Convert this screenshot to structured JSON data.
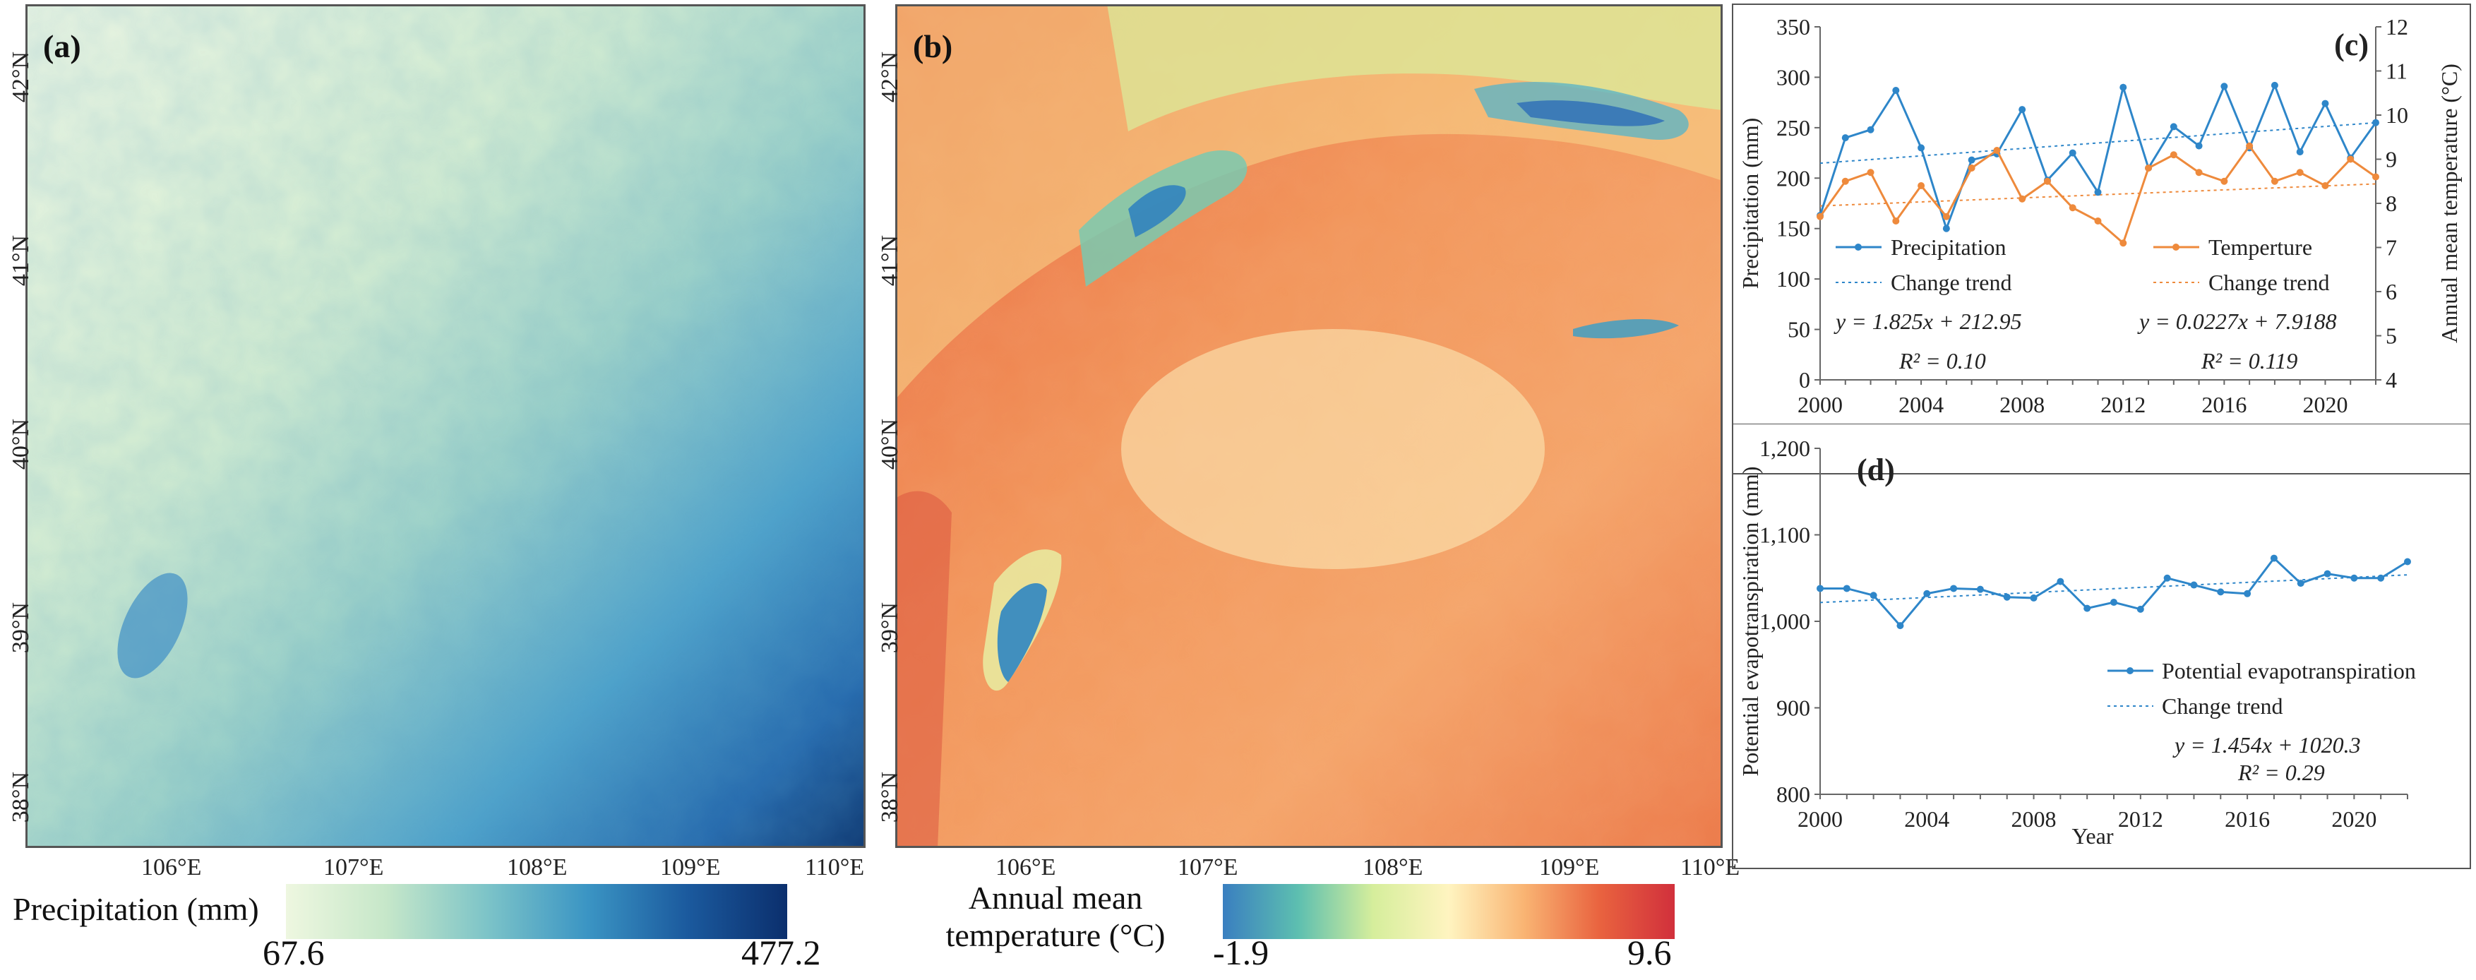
{
  "panels": {
    "a": {
      "letter": "(a)"
    },
    "b": {
      "letter": "(b)"
    },
    "c": {
      "letter": "(c)"
    },
    "d": {
      "letter": "(d)"
    }
  },
  "map_axes": {
    "lon_labels": [
      "106°E",
      "107°E",
      "108°E",
      "109°E",
      "110°E"
    ],
    "lat_labels": [
      "42°N",
      "41°N",
      "40°N",
      "39°N",
      "38°N"
    ]
  },
  "legend_a": {
    "title": "Precipitation (mm)",
    "min": "67.6",
    "max": "477.2",
    "colors": [
      "#eef7e0",
      "#c6e7c9",
      "#7dc4c8",
      "#3b95c4",
      "#1b5a9e",
      "#0b2f6d"
    ]
  },
  "legend_b": {
    "title_line1": "Annual mean",
    "title_line2": "temperature (°C)",
    "min": "-1.9",
    "max": "9.6",
    "colors": [
      "#3a7fc0",
      "#5dbfb0",
      "#d6ee9c",
      "#fff4c0",
      "#f9b473",
      "#e9633f",
      "#d1303c"
    ]
  },
  "colors": {
    "precip": "#2e86c9",
    "temp": "#ee8a3c"
  },
  "chart_data": [
    {
      "panel": "(c)",
      "type": "line",
      "x": [
        2000,
        2001,
        2002,
        2003,
        2004,
        2005,
        2006,
        2007,
        2008,
        2009,
        2010,
        2011,
        2012,
        2013,
        2014,
        2015,
        2016,
        2017,
        2018,
        2019,
        2020,
        2021,
        2022
      ],
      "series": [
        {
          "name": "Precipitation",
          "axis": "left",
          "values": [
            163,
            240,
            248,
            287,
            230,
            150,
            218,
            224,
            268,
            198,
            225,
            186,
            290,
            210,
            251,
            232,
            291,
            230,
            292,
            226,
            274,
            220,
            255
          ]
        },
        {
          "name": "Temperture",
          "axis": "right",
          "values": [
            7.7,
            8.5,
            8.7,
            7.6,
            8.4,
            7.7,
            8.8,
            9.2,
            8.1,
            8.5,
            7.9,
            7.6,
            7.1,
            8.8,
            9.1,
            8.7,
            8.5,
            9.3,
            8.5,
            8.7,
            8.4,
            9.0,
            8.6
          ]
        }
      ],
      "trends": [
        {
          "name": "Change trend",
          "of": "Precipitation",
          "slope": 1.825,
          "intercept": 212.95,
          "equation": "y = 1.825x + 212.95",
          "r2": "R² = 0.10"
        },
        {
          "name": "Change trend",
          "of": "Temperture",
          "slope": 0.0227,
          "intercept": 7.9188,
          "equation": "y = 0.0227x + 7.9188",
          "r2": "R² = 0.119"
        }
      ],
      "ylabel": "Precipitation (mm)",
      "y2label": "Annual mean temperature (°C)",
      "ylim": [
        0,
        350
      ],
      "y2lim": [
        4,
        12
      ],
      "xlim": [
        2000,
        2022
      ],
      "xticks": [
        "2000",
        "2004",
        "2008",
        "2012",
        "2016",
        "2020"
      ],
      "yticks": [
        "0",
        "50",
        "100",
        "150",
        "200",
        "250",
        "300",
        "350"
      ],
      "y2ticks": [
        "4",
        "5",
        "6",
        "7",
        "8",
        "9",
        "10",
        "11",
        "12"
      ],
      "legend": [
        "Precipitation",
        "Temperture",
        "Change trend",
        "Change trend"
      ]
    },
    {
      "panel": "(d)",
      "type": "line",
      "x": [
        2000,
        2001,
        2002,
        2003,
        2004,
        2005,
        2006,
        2007,
        2008,
        2009,
        2010,
        2011,
        2012,
        2013,
        2014,
        2015,
        2016,
        2017,
        2018,
        2019,
        2020,
        2021,
        2022
      ],
      "series": [
        {
          "name": "Potential evapotranspiration",
          "values": [
            1038,
            1038,
            1030,
            995,
            1032,
            1038,
            1037,
            1028,
            1027,
            1046,
            1015,
            1022,
            1014,
            1050,
            1042,
            1034,
            1032,
            1073,
            1044,
            1055,
            1050,
            1050,
            1069
          ]
        }
      ],
      "trends": [
        {
          "name": "Change trend",
          "slope": 1.454,
          "intercept": 1020.3,
          "equation": "y = 1.454x + 1020.3",
          "r2": "R² = 0.29"
        }
      ],
      "xlabel": "Year",
      "ylabel": "Potential evapotranspiration (mm)",
      "ylim": [
        800,
        1200
      ],
      "xlim": [
        2000,
        2022
      ],
      "xticks": [
        "2000",
        "2004",
        "2008",
        "2012",
        "2016",
        "2020"
      ],
      "yticks": [
        "800",
        "900",
        "1,000",
        "1,100",
        "1,200"
      ],
      "legend": [
        "Potential evapotranspiration",
        "Change trend"
      ]
    }
  ]
}
